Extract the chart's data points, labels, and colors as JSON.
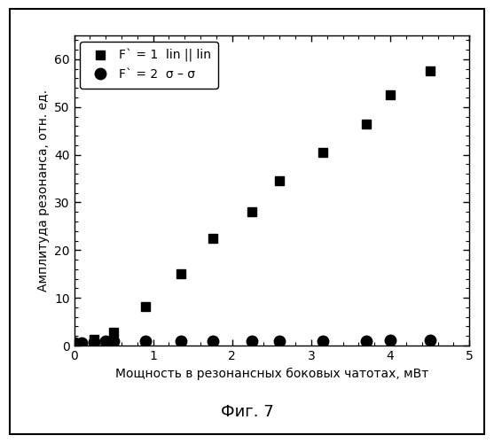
{
  "squares_x": [
    0.0,
    0.1,
    0.25,
    0.4,
    0.5,
    0.9,
    1.35,
    1.75,
    2.25,
    2.6,
    3.15,
    3.7,
    4.0,
    4.5
  ],
  "squares_y": [
    0.5,
    0.3,
    1.3,
    0.8,
    2.8,
    8.2,
    15.0,
    22.5,
    28.0,
    34.5,
    40.5,
    46.5,
    52.5,
    57.5
  ],
  "circles_x": [
    0.0,
    0.1,
    0.25,
    0.4,
    0.5,
    0.9,
    1.35,
    1.75,
    2.25,
    2.6,
    3.15,
    3.7,
    4.0,
    4.5
  ],
  "circles_y": [
    0.5,
    0.5,
    0.8,
    1.0,
    1.0,
    1.0,
    1.0,
    1.0,
    1.0,
    1.0,
    1.0,
    1.0,
    1.2,
    1.2
  ],
  "legend1": "F` = 1  lin || lin",
  "legend2": "F` = 2  σ – σ",
  "xlabel": "Мощность в резонансных боковых чатотах, мВт",
  "ylabel": "Амплитуда резонанса, отн. ед.",
  "caption": "Фиг. 7",
  "xlim": [
    0,
    5
  ],
  "ylim": [
    0,
    65
  ],
  "yticks": [
    0,
    10,
    20,
    30,
    40,
    50,
    60
  ],
  "xticks": [
    0,
    1,
    2,
    3,
    4,
    5
  ],
  "bg_color": "#ffffff",
  "plot_bg_color": "#ffffff",
  "marker_color": "#000000",
  "square_marker": "s",
  "circle_marker": "o",
  "marker_size_sq": 7,
  "marker_size_ci": 9,
  "xlabel_fontsize": 10,
  "ylabel_fontsize": 10,
  "tick_fontsize": 10,
  "legend_fontsize": 10,
  "caption_fontsize": 13
}
